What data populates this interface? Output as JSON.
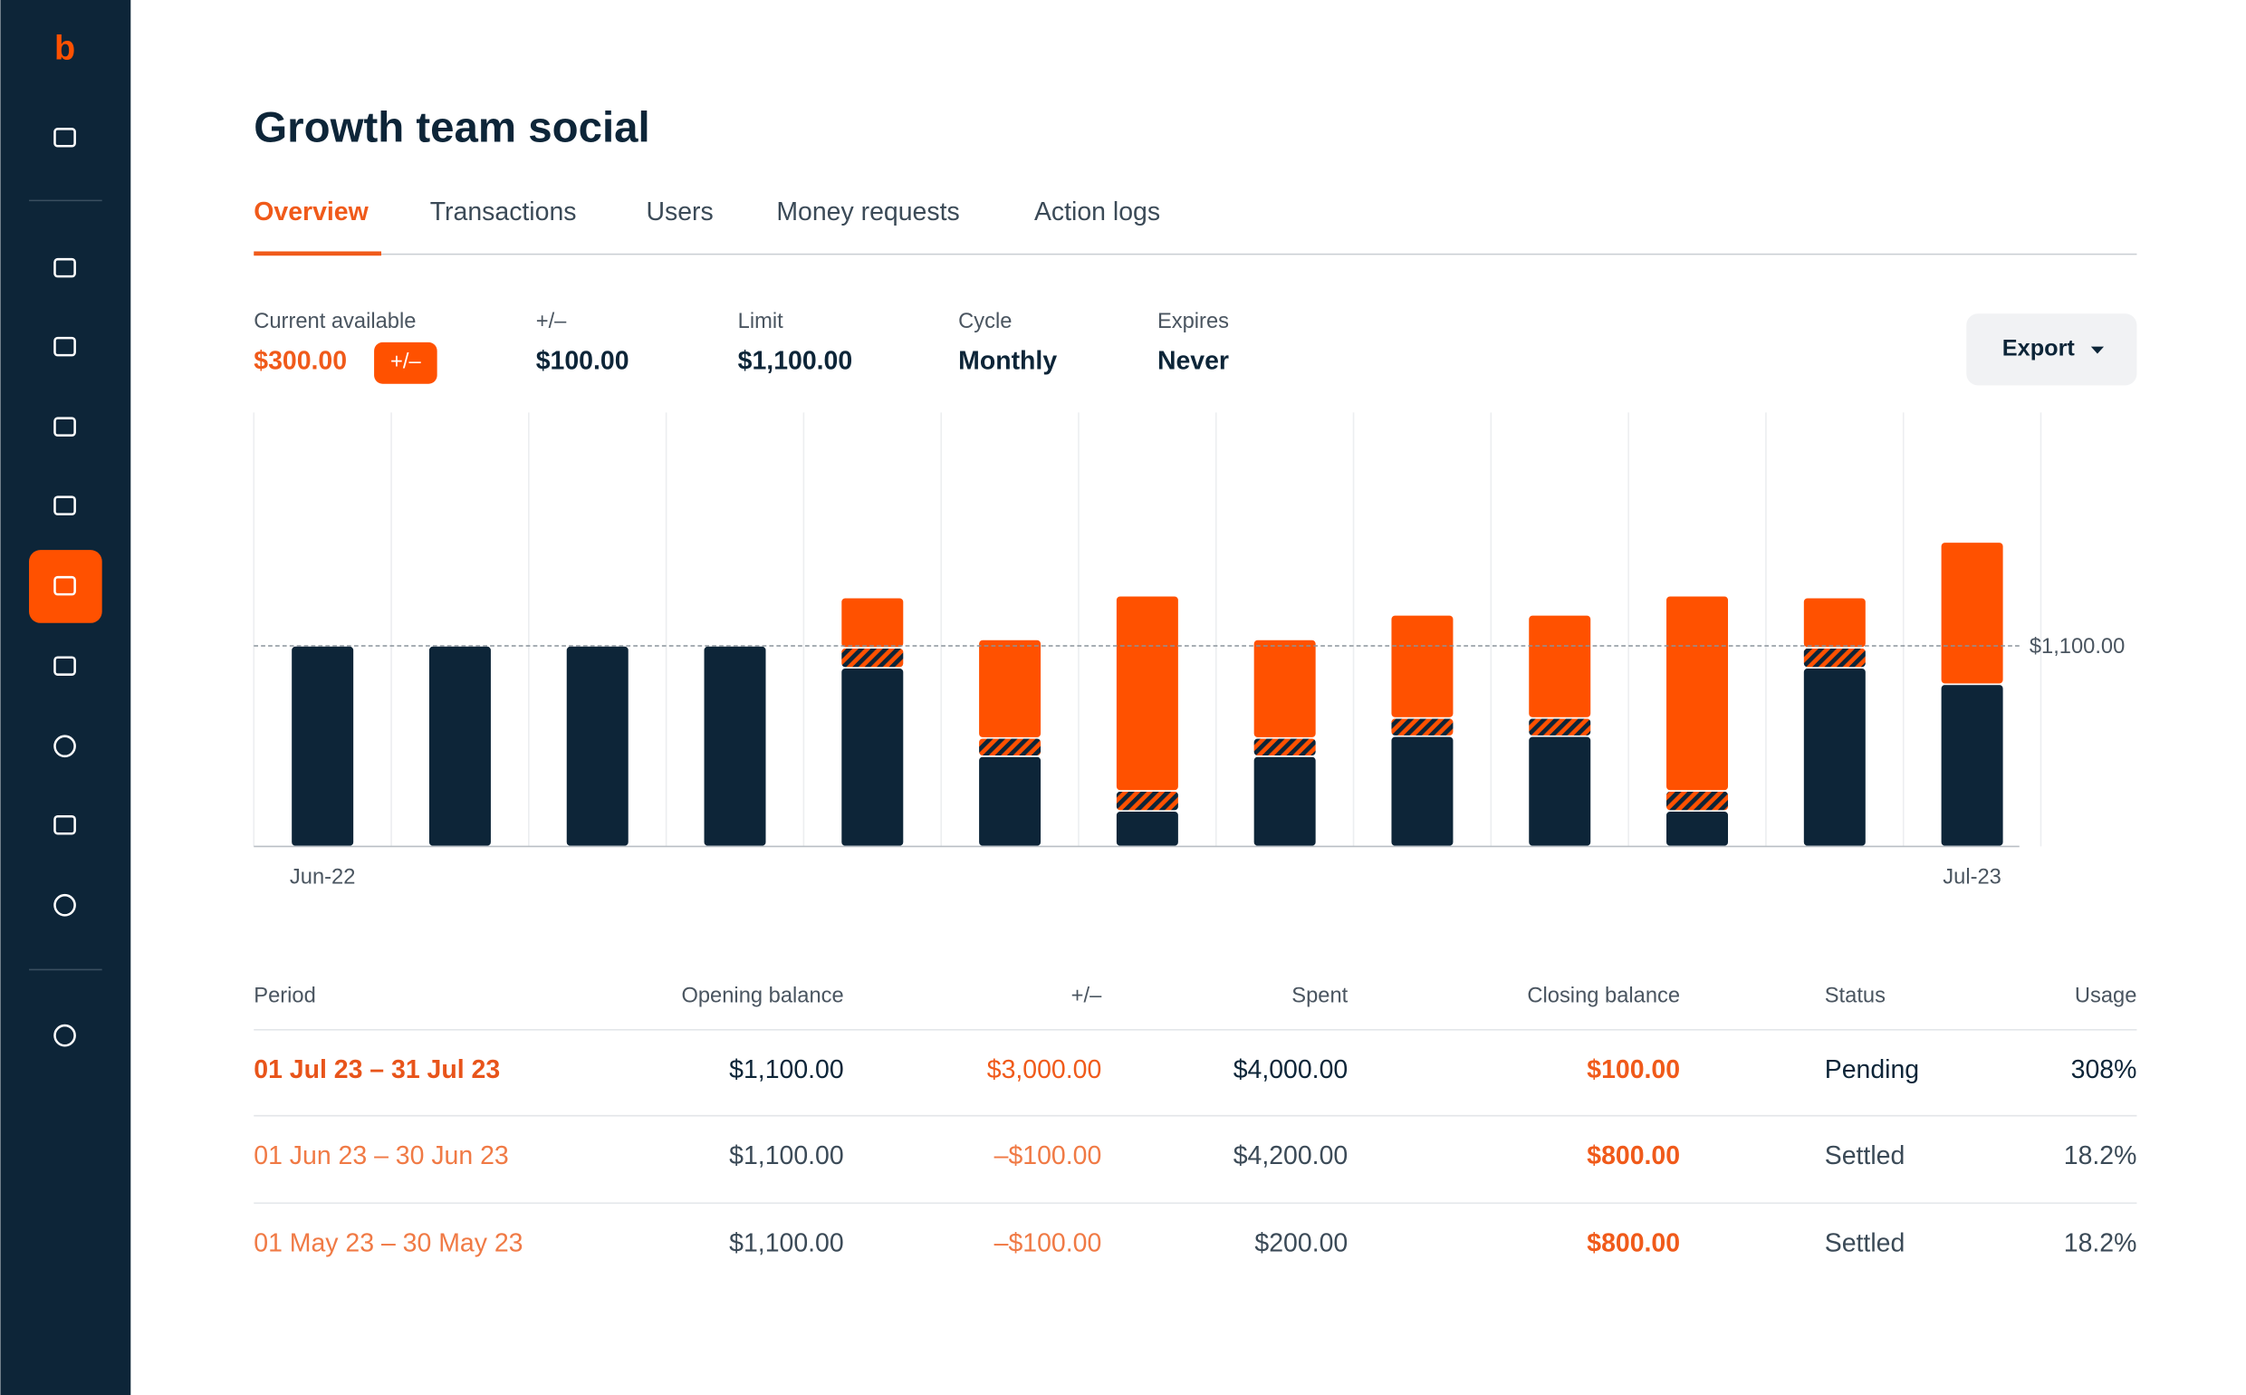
{
  "sidebar": {
    "logo": "b"
  },
  "header": {
    "title": "Growth team social"
  },
  "tabs": [
    "Overview",
    "Transactions",
    "Users",
    "Money requests",
    "Action logs"
  ],
  "stats": [
    {
      "label": "Current available",
      "value": "$300.00",
      "badge": "+/–"
    },
    {
      "label": "+/–",
      "value": "$100.00"
    },
    {
      "label": "Limit",
      "value": "$1,100.00"
    },
    {
      "label": "Cycle",
      "value": "Monthly"
    },
    {
      "label": "Expires",
      "value": "Never"
    }
  ],
  "export": "Export",
  "chart_data": {
    "type": "bar",
    "stacked": true,
    "categories": [
      "Jun-22",
      null,
      null,
      null,
      null,
      null,
      null,
      null,
      null,
      null,
      null,
      null,
      "Jul-23"
    ],
    "series": [
      {
        "color": "#0d2538",
        "values": [
          1100,
          1100,
          1100,
          1100,
          980,
          495,
          195,
          495,
          605,
          605,
          195,
          980,
          890
        ]
      },
      {
        "color": "#ff5100",
        "pattern": "hatch",
        "stripe_color": "#0d2538",
        "values": [
          0,
          0,
          0,
          0,
          110,
          100,
          110,
          100,
          100,
          100,
          110,
          110,
          0
        ]
      },
      {
        "color": "#ff5100",
        "values": [
          0,
          0,
          0,
          0,
          275,
          540,
          1070,
          540,
          565,
          565,
          1070,
          275,
          780
        ]
      }
    ],
    "ylim": [
      0,
      2380
    ],
    "ref_line": {
      "value": 1100,
      "label": "$1,100.00"
    },
    "grid": true
  },
  "table": {
    "headers": [
      "Period",
      "Opening balance",
      "+/–",
      "Spent",
      "Closing balance",
      "Status",
      "Usage"
    ],
    "rows": [
      [
        "01 Jul 23 – 31 Jul 23",
        "$1,100.00",
        "$3,000.00",
        "$4,000.00",
        "$100.00",
        "Pending",
        "308%"
      ],
      [
        "01 Jun 23 – 30 Jun 23",
        "$1,100.00",
        "–$100.00",
        "$4,200.00",
        "$800.00",
        "Settled",
        "18.2%"
      ],
      [
        "01 May 23 – 30 May 23",
        "$1,100.00",
        "–$100.00",
        "$200.00",
        "$800.00",
        "Settled",
        "18.2%"
      ]
    ]
  }
}
